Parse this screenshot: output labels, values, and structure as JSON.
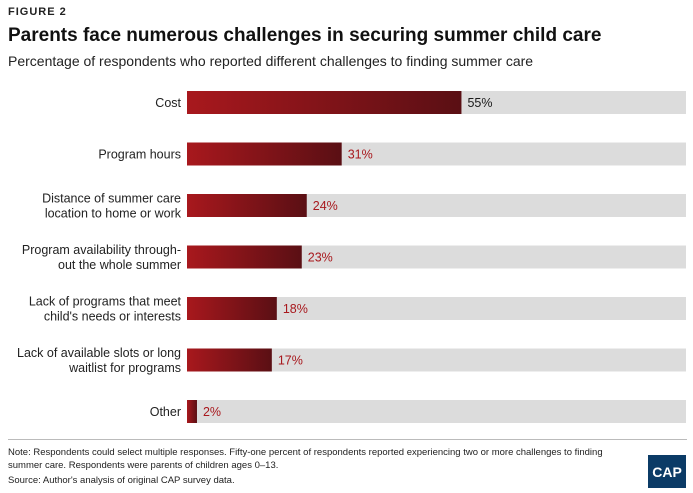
{
  "figure_label": "FIGURE 2",
  "colors": {
    "bar_light": "#a8181d",
    "bar_dark": "#5a0f14",
    "track": "#dcdcdc",
    "value_text": "#a8181d",
    "cost_value_text": "#1a1a1a",
    "logo_bg": "#0b3b66"
  },
  "chart_data": {
    "type": "bar",
    "orientation": "horizontal",
    "title": "Parents face numerous challenges in securing summer child care",
    "subtitle": "Percentage of respondents who reported different challenges to finding summer care",
    "categories": [
      [
        "Cost"
      ],
      [
        "Program hours"
      ],
      [
        "Distance of summer care",
        "location to home or work"
      ],
      [
        "Program availability through-",
        "out the whole summer"
      ],
      [
        "Lack of programs that meet",
        "child's needs or interests"
      ],
      [
        "Lack of available slots or long",
        "waitlist for programs"
      ],
      [
        "Other"
      ]
    ],
    "values": [
      55,
      31,
      24,
      23,
      18,
      17,
      2
    ],
    "value_labels": [
      "55%",
      "31%",
      "24%",
      "23%",
      "18%",
      "17%",
      "2%"
    ],
    "xlim": [
      0,
      100
    ],
    "grid": false,
    "legend": "none"
  },
  "note": "Note: Respondents could select multiple responses. Fifty-one percent of respondents reported experiencing two or more challenges to finding summer care. Respondents were parents of children ages 0–13.",
  "source": "Source: Author's analysis of original CAP survey data.",
  "logo_text": "CAP"
}
